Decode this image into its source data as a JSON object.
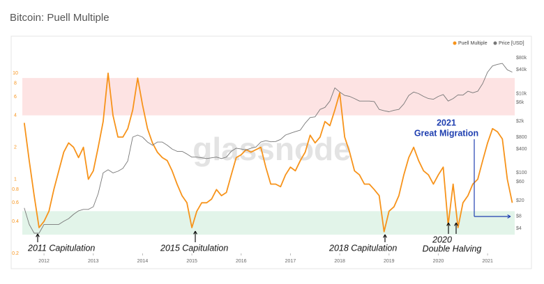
{
  "chart_data": {
    "type": "line",
    "title": "Bitcoin: Puell Multiple",
    "watermark": "glassnode",
    "legend": "top-right",
    "log_scale": true,
    "x": [
      2011.6,
      2011.7,
      2011.8,
      2011.9,
      2012.0,
      2012.1,
      2012.2,
      2012.3,
      2012.4,
      2012.5,
      2012.6,
      2012.7,
      2012.8,
      2012.9,
      2013.0,
      2013.1,
      2013.2,
      2013.3,
      2013.4,
      2013.5,
      2013.6,
      2013.7,
      2013.8,
      2013.9,
      2014.0,
      2014.1,
      2014.2,
      2014.3,
      2014.4,
      2014.5,
      2014.6,
      2014.7,
      2014.8,
      2014.9,
      2015.0,
      2015.1,
      2015.2,
      2015.3,
      2015.4,
      2015.5,
      2015.6,
      2015.7,
      2015.8,
      2015.9,
      2016.0,
      2016.1,
      2016.2,
      2016.3,
      2016.4,
      2016.5,
      2016.6,
      2016.7,
      2016.8,
      2016.9,
      2017.0,
      2017.1,
      2017.2,
      2017.3,
      2017.4,
      2017.5,
      2017.6,
      2017.7,
      2017.8,
      2017.9,
      2018.0,
      2018.1,
      2018.2,
      2018.3,
      2018.4,
      2018.5,
      2018.6,
      2018.7,
      2018.8,
      2018.9,
      2019.0,
      2019.1,
      2019.2,
      2019.3,
      2019.4,
      2019.5,
      2019.6,
      2019.7,
      2019.8,
      2019.9,
      2020.0,
      2020.1,
      2020.2,
      2020.3,
      2020.4,
      2020.5,
      2020.6,
      2020.7,
      2020.8,
      2020.9,
      2021.0,
      2021.1,
      2021.2,
      2021.3,
      2021.4,
      2021.5
    ],
    "series": [
      {
        "name": "Puell Multiple",
        "color": "#f7931a",
        "axis": "y",
        "values": [
          3.4,
          1.5,
          0.7,
          0.35,
          0.4,
          0.5,
          0.8,
          1.2,
          1.8,
          2.2,
          2.0,
          1.6,
          2.0,
          1.0,
          1.2,
          2.0,
          3.5,
          10,
          4,
          2.5,
          2.5,
          3,
          4.5,
          9,
          5,
          3,
          2.2,
          1.8,
          1.6,
          1.5,
          1.2,
          0.9,
          0.7,
          0.6,
          0.35,
          0.5,
          0.6,
          0.6,
          0.65,
          0.8,
          0.7,
          0.75,
          1.1,
          1.6,
          1.7,
          1.9,
          1.8,
          1.9,
          2.0,
          1.3,
          0.9,
          0.9,
          0.85,
          1.1,
          1.3,
          1.2,
          1.5,
          1.8,
          2.6,
          2.2,
          2.5,
          3.5,
          3.2,
          4.5,
          6.5,
          2.5,
          1.8,
          1.2,
          1.1,
          0.9,
          0.9,
          0.8,
          0.7,
          0.32,
          0.5,
          0.55,
          0.7,
          1.1,
          1.6,
          2.0,
          1.5,
          1.2,
          1.1,
          0.9,
          1.1,
          1.3,
          0.37,
          0.9,
          0.35,
          0.6,
          0.7,
          0.9,
          1.0,
          1.5,
          2.2,
          3.0,
          2.8,
          2.4,
          1.0,
          0.6
        ]
      },
      {
        "name": "Price [USD]",
        "color": "#777777",
        "axis": "y2",
        "values": [
          13,
          5,
          3,
          3,
          5,
          5,
          5,
          5,
          6,
          7,
          9,
          11,
          12,
          12,
          14,
          30,
          100,
          120,
          100,
          110,
          130,
          200,
          800,
          900,
          800,
          600,
          500,
          600,
          600,
          500,
          400,
          350,
          350,
          300,
          250,
          250,
          240,
          230,
          240,
          250,
          230,
          250,
          350,
          420,
          400,
          380,
          420,
          450,
          600,
          650,
          610,
          620,
          700,
          900,
          1000,
          1100,
          1200,
          1800,
          2500,
          2600,
          4000,
          4500,
          6500,
          14000,
          11000,
          9000,
          8500,
          7500,
          6500,
          6500,
          6500,
          6300,
          4000,
          3700,
          3500,
          3800,
          4000,
          5500,
          9000,
          11000,
          10000,
          8500,
          7500,
          7200,
          8500,
          9500,
          6500,
          7500,
          9300,
          9200,
          11500,
          10500,
          11500,
          18000,
          35000,
          50000,
          55000,
          58000,
          40000,
          35000
        ]
      }
    ],
    "xlim": [
      2011.56,
      2021.55
    ],
    "xticks": [
      2012,
      2013,
      2014,
      2015,
      2016,
      2017,
      2018,
      2019,
      2020,
      2021
    ],
    "ylim": [
      0.2,
      17
    ],
    "yticks": [
      0.2,
      0.4,
      0.6,
      0.8,
      1,
      2,
      4,
      6,
      8,
      10
    ],
    "y2lim": [
      0.93,
      136000
    ],
    "y2ticks": [
      {
        "value": 4,
        "label": "$4"
      },
      {
        "value": 8,
        "label": "$8"
      },
      {
        "value": 20,
        "label": "$20"
      },
      {
        "value": 60,
        "label": "$60"
      },
      {
        "value": 100,
        "label": "$100"
      },
      {
        "value": 400,
        "label": "$400"
      },
      {
        "value": 800,
        "label": "$800"
      },
      {
        "value": 2000,
        "label": "$2k"
      },
      {
        "value": 6000,
        "label": "$6k"
      },
      {
        "value": 10000,
        "label": "$10k"
      },
      {
        "value": 40000,
        "label": "$40k"
      },
      {
        "value": 80000,
        "label": "$80k"
      }
    ],
    "bands": [
      {
        "range": [
          4,
          9
        ],
        "color": "#fde3e3"
      },
      {
        "range": [
          0.3,
          0.5
        ],
        "color": "#e2f4e9"
      }
    ],
    "annotations": [
      "2011 Capitulation",
      "2015 Capitulation",
      "2018 Capitulation",
      "2020",
      "Double Halving",
      "2021",
      "Great Migration"
    ]
  }
}
